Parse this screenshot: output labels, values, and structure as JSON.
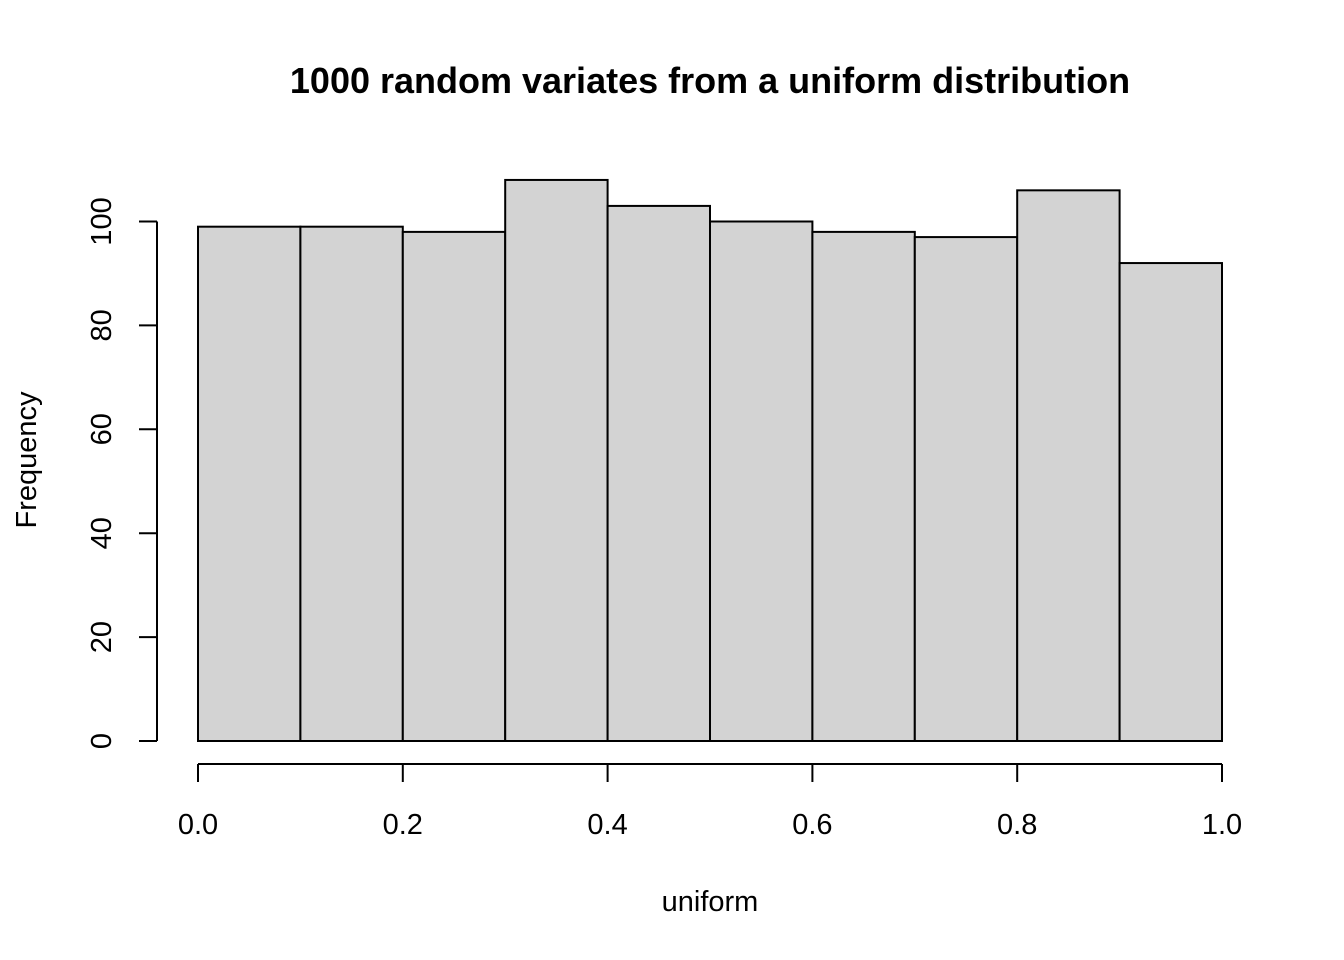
{
  "chart_data": {
    "type": "bar",
    "title": "1000 random variates from a uniform distribution",
    "xlabel": "uniform",
    "ylabel": "Frequency",
    "bins": [
      [
        0.0,
        0.1
      ],
      [
        0.1,
        0.2
      ],
      [
        0.2,
        0.3
      ],
      [
        0.3,
        0.4
      ],
      [
        0.4,
        0.5
      ],
      [
        0.5,
        0.6
      ],
      [
        0.6,
        0.7
      ],
      [
        0.7,
        0.8
      ],
      [
        0.8,
        0.9
      ],
      [
        0.9,
        1.0
      ]
    ],
    "values": [
      99,
      99,
      98,
      108,
      103,
      100,
      98,
      97,
      106,
      92
    ],
    "xlim": [
      0,
      1
    ],
    "ylim": [
      0,
      108
    ],
    "x_ticks": [
      0.0,
      0.2,
      0.4,
      0.6,
      0.8,
      1.0
    ],
    "x_tick_labels": [
      "0.0",
      "0.2",
      "0.4",
      "0.6",
      "0.8",
      "1.0"
    ],
    "y_ticks": [
      0,
      20,
      40,
      60,
      80,
      100
    ],
    "y_tick_labels": [
      "0",
      "20",
      "40",
      "60",
      "80",
      "100"
    ],
    "bar_fill": "#d3d3d3",
    "bar_stroke": "#000000",
    "grid": false,
    "legend": "none"
  }
}
